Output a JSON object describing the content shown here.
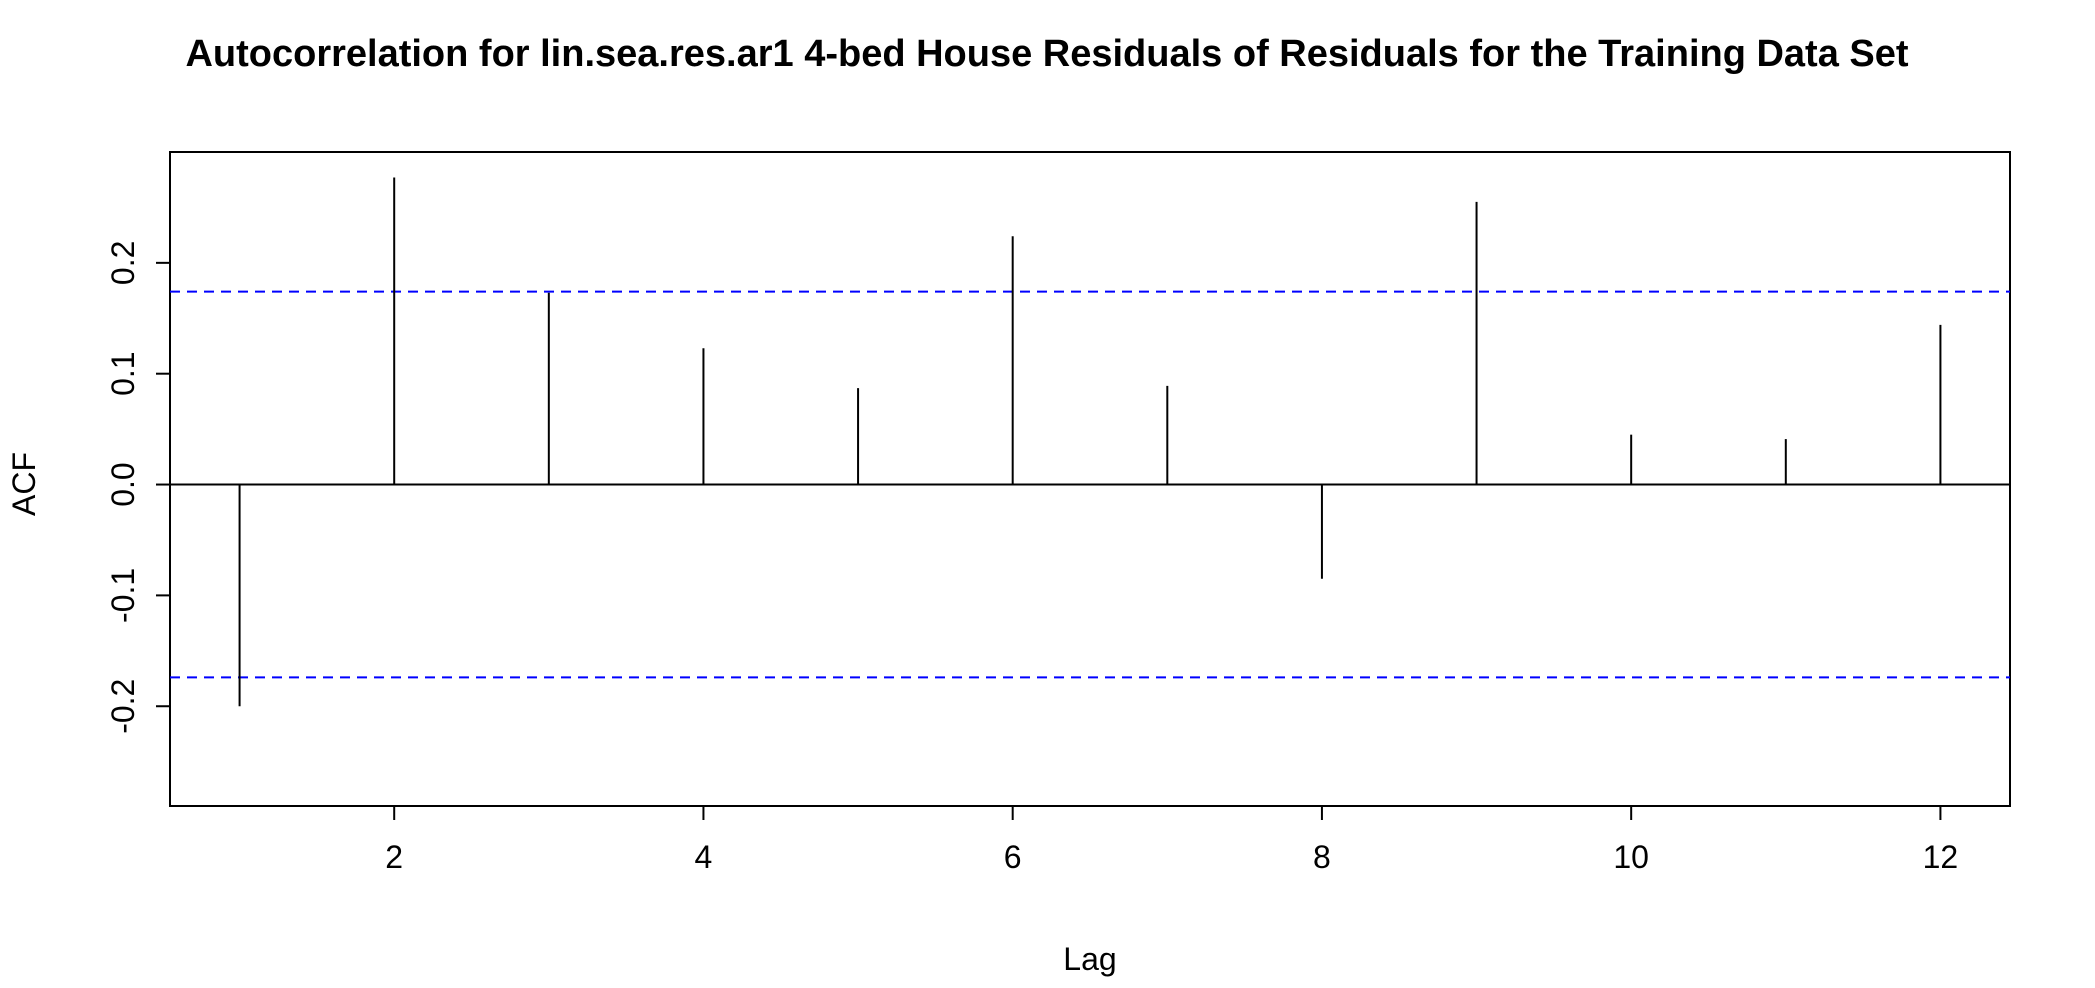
{
  "chart_data": {
    "type": "bar",
    "subtype": "acf-stem",
    "title": "Autocorrelation for lin.sea.res.ar1 4-bed House Residuals of Residuals for the Training Data Set",
    "xlabel": "Lag",
    "ylabel": "ACF",
    "xlim": [
      0.55,
      12.45
    ],
    "ylim": [
      -0.29,
      0.3
    ],
    "x_ticks": [
      2,
      4,
      6,
      8,
      10,
      12
    ],
    "x_tick_labels": [
      "2",
      "4",
      "6",
      "8",
      "10",
      "12"
    ],
    "y_ticks": [
      -0.2,
      -0.1,
      0.0,
      0.1,
      0.2
    ],
    "y_tick_labels": [
      "-0.2",
      "-0.1",
      "0.0",
      "0.1",
      "0.2"
    ],
    "lags": [
      1,
      2,
      3,
      4,
      5,
      6,
      7,
      8,
      9,
      10,
      11,
      12
    ],
    "values": [
      -0.2,
      0.277,
      0.173,
      0.123,
      0.087,
      0.224,
      0.089,
      -0.085,
      0.255,
      0.045,
      0.041,
      0.144
    ],
    "confidence_limits": [
      0.174,
      -0.174
    ],
    "zero_line": 0,
    "grid": false,
    "colors": {
      "stems": "#000000",
      "confidence_lines": "#0000ff",
      "axes": "#000000"
    }
  }
}
